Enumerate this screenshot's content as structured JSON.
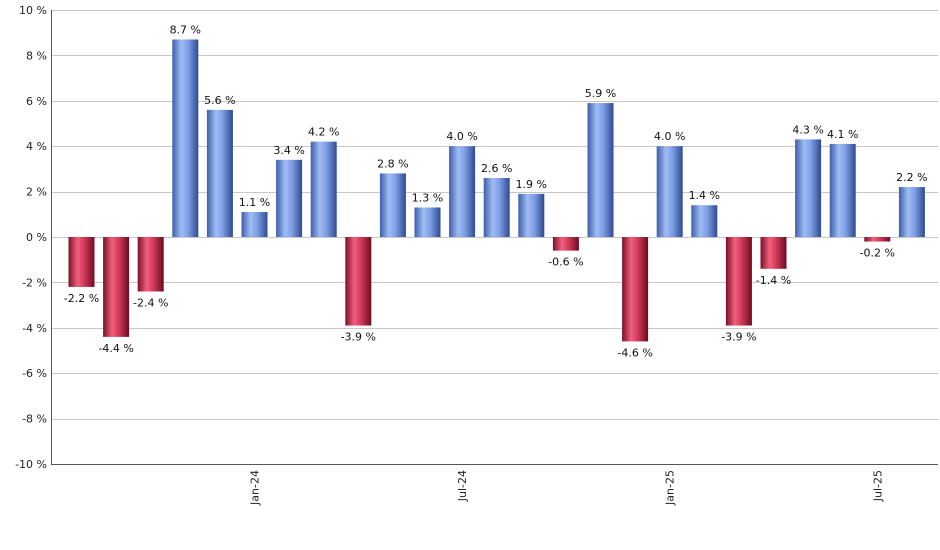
{
  "chart_data": {
    "type": "bar",
    "title": "",
    "xlabel": "",
    "ylabel": "",
    "ylim": [
      -10,
      10
    ],
    "y_ticks": [
      10,
      8,
      6,
      4,
      2,
      0,
      -2,
      -4,
      -6,
      -8,
      -10
    ],
    "y_tick_suffix": " %",
    "value_suffix": " %",
    "grid": true,
    "x_tick_labels": [
      {
        "label": "Jan-24",
        "at_index": 5
      },
      {
        "label": "Jul-24",
        "at_index": 11
      },
      {
        "label": "Jan-25",
        "at_index": 17
      },
      {
        "label": "Jul-25",
        "at_index": 23
      }
    ],
    "values": [
      -2.2,
      -4.4,
      -2.4,
      8.7,
      5.6,
      1.1,
      3.4,
      4.2,
      -3.9,
      2.8,
      1.3,
      4.0,
      2.6,
      1.9,
      -0.6,
      5.9,
      -4.6,
      4.0,
      1.4,
      -3.9,
      -1.4,
      4.3,
      4.1,
      -0.2,
      2.2
    ],
    "value_labels": [
      "-2.2",
      "-4.4",
      "-2.4",
      "8.7",
      "5.6",
      "1.1",
      "3.4",
      "4.2",
      "-3.9",
      "2.8",
      "1.3",
      "4.0",
      "2.6",
      "1.9",
      "-0.6",
      "5.9",
      "-4.6",
      "4.0",
      "1.4",
      "-3.9",
      "-1.4",
      "4.3",
      "4.1",
      "-0.2",
      "2.2"
    ],
    "colors": {
      "positive": "#7f9fe6",
      "negative": "#c8304f"
    }
  }
}
